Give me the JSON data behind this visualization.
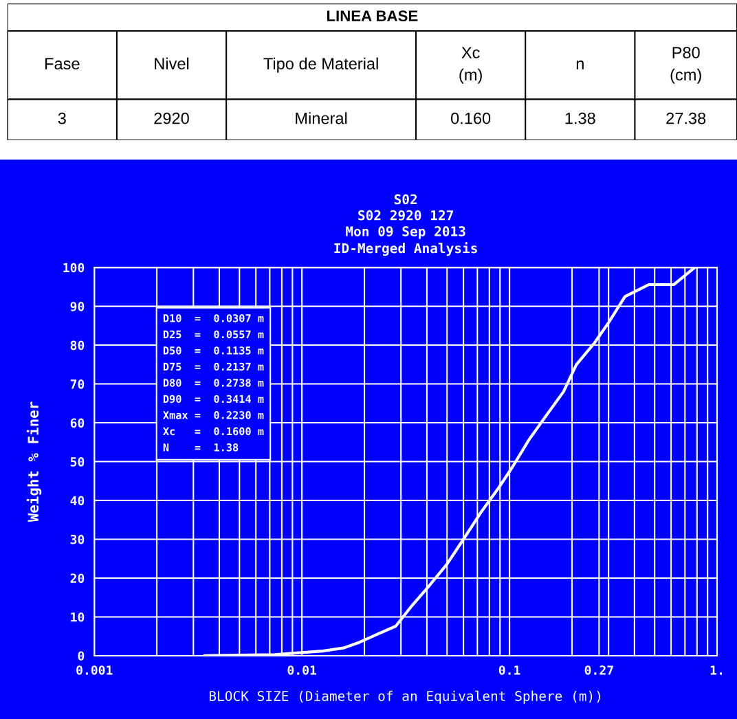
{
  "chart_data": [
    {
      "type": "other",
      "title": "LINEA BASE",
      "annotations": [
        "Fase",
        "Nivel",
        "Tipo de Material",
        "Xc\n(m)",
        "n",
        "P80\n(cm)",
        "3",
        "2920",
        "Mineral",
        "0.160",
        "1.38",
        "27.38"
      ]
    },
    {
      "type": "line",
      "title": "S02",
      "subtitle": "S02 2920 127\nMon 09 Sep 2013\nID-Merged Analysis",
      "xlabel": "BLOCK SIZE (Diameter of an Equivalent Sphere (m))",
      "ylabel": "Weight % Finer",
      "log": "x",
      "grid": true,
      "marker": "none",
      "line_style": "solid",
      "xlim": [
        0.001,
        1
      ],
      "ylim": [
        0,
        100
      ],
      "xticks": [
        0.001,
        {
          "value": 0.002,
          "label": null
        },
        {
          "value": 0.003,
          "label": null
        },
        {
          "value": 0.004,
          "label": null
        },
        {
          "value": 0.005,
          "label": null
        },
        {
          "value": 0.006,
          "label": null
        },
        {
          "value": 0.007,
          "label": null
        },
        {
          "value": 0.008,
          "label": null
        },
        {
          "value": 0.009,
          "label": null
        },
        0.01,
        {
          "value": 0.02,
          "label": null
        },
        {
          "value": 0.03,
          "label": null
        },
        {
          "value": 0.04,
          "label": null
        },
        {
          "value": 0.05,
          "label": null
        },
        {
          "value": 0.06,
          "label": null
        },
        {
          "value": 0.07,
          "label": null
        },
        {
          "value": 0.08,
          "label": null
        },
        {
          "value": 0.09,
          "label": null
        },
        0.1,
        {
          "value": 0.2,
          "label": null
        },
        0.27,
        {
          "value": 0.3,
          "label": null
        },
        {
          "value": 0.4,
          "label": null
        },
        {
          "value": 0.5,
          "label": null
        },
        {
          "value": 0.6,
          "label": null
        },
        {
          "value": 0.7,
          "label": null
        },
        {
          "value": 0.8,
          "label": null
        },
        {
          "value": 0.9,
          "label": null
        },
        {
          "value": 1,
          "label": "1."
        }
      ],
      "yticks": [
        0,
        10,
        20,
        30,
        40,
        50,
        60,
        70,
        80,
        90,
        100
      ],
      "annotations": [
        "D10  =  0.0307 m",
        "D25  =  0.0557 m",
        "D50  =  0.1135 m",
        "D75  =  0.2137 m",
        "D80  =  0.2738 m",
        "D90  =  0.3414 m",
        "Xmax =  0.2230 m",
        "Xc   =  0.1600 m",
        "N    =  1.38"
      ],
      "series": [
        {
          "color": "#ffffff",
          "x": [
            0.0034,
            0.0074,
            0.01,
            0.0126,
            0.0159,
            0.019,
            0.023,
            0.0283,
            0.034,
            0.041,
            0.05,
            0.06,
            0.073,
            0.088,
            0.103,
            0.124,
            0.15,
            0.182,
            0.21,
            0.256,
            0.3,
            0.36,
            0.47,
            0.62,
            0.78
          ],
          "values": [
            0,
            0.3,
            0.8,
            1.2,
            2,
            3.5,
            5.5,
            7.6,
            13,
            18,
            23.6,
            30,
            37,
            43,
            48.5,
            55.6,
            61.8,
            68,
            75,
            80.5,
            85.8,
            92.5,
            95.6,
            95.6,
            100
          ]
        }
      ]
    }
  ]
}
